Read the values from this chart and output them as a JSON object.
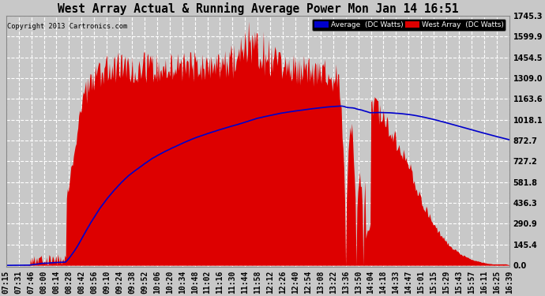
{
  "title": "West Array Actual & Running Average Power Mon Jan 14 16:51",
  "copyright": "Copyright 2013 Cartronics.com",
  "legend_avg": "Average  (DC Watts)",
  "legend_west": "West Array  (DC Watts)",
  "yticks": [
    0.0,
    145.4,
    290.9,
    436.3,
    581.8,
    727.2,
    872.7,
    1018.1,
    1163.6,
    1309.0,
    1454.5,
    1599.9,
    1745.3
  ],
  "ymax": 1745.3,
  "background_color": "#c8c8c8",
  "plot_bg_color": "#c8c8c8",
  "grid_color": "#ffffff",
  "red_color": "#dd0000",
  "blue_color": "#0000cc",
  "title_color": "#000000",
  "xtick_labels": [
    "07:15",
    "07:31",
    "07:46",
    "08:00",
    "08:14",
    "08:28",
    "08:42",
    "08:56",
    "09:10",
    "09:24",
    "09:38",
    "09:52",
    "10:06",
    "10:20",
    "10:34",
    "10:48",
    "11:02",
    "11:16",
    "11:30",
    "11:44",
    "11:58",
    "12:12",
    "12:26",
    "12:40",
    "12:54",
    "13:08",
    "13:22",
    "13:36",
    "13:50",
    "14:04",
    "14:18",
    "14:33",
    "14:47",
    "15:01",
    "15:15",
    "15:29",
    "15:43",
    "15:57",
    "16:11",
    "16:25",
    "16:39"
  ]
}
